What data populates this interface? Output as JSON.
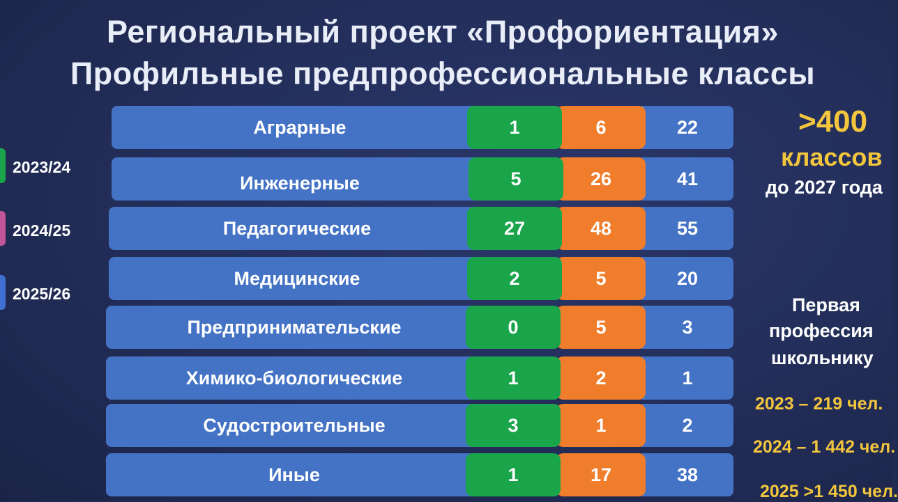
{
  "title_line1": "Региональный проект «Профориентация»",
  "title_line2": "Профильные предпрофессиональные классы",
  "years": [
    {
      "label": "2023/24",
      "color": "#1aa54a"
    },
    {
      "label": "2024/25",
      "color": "#c0569a"
    },
    {
      "label": "2025/26",
      "color": "#3f6fd0"
    }
  ],
  "table": {
    "rows": [
      {
        "name": "Аграрные",
        "v1": "1",
        "v2": "6",
        "v3": "22"
      },
      {
        "name": "Инженерные",
        "v1": "5",
        "v2": "26",
        "v3": "41"
      },
      {
        "name": "Педагогические",
        "v1": "27",
        "v2": "48",
        "v3": "55"
      },
      {
        "name": "Медицинские",
        "v1": "2",
        "v2": "5",
        "v3": "20"
      },
      {
        "name": "Предпринимательские",
        "v1": "0",
        "v2": "5",
        "v3": "3"
      },
      {
        "name": "Химико-биологические",
        "v1": "1",
        "v2": "2",
        "v3": "1"
      },
      {
        "name": "Судостроительные",
        "v1": "3",
        "v2": "1",
        "v3": "2"
      },
      {
        "name": "Иные",
        "v1": "1",
        "v2": "17",
        "v3": "38"
      }
    ]
  },
  "side": {
    "big_number": ">400",
    "classes": "классов",
    "until": "до 2027 года",
    "first_prof_l1": "Первая",
    "first_prof_l2": "профессия",
    "first_prof_l3": "школьнику",
    "stat_2023": "2023 – 219 чел.",
    "stat_2024": "2024 – 1 442 чел.",
    "stat_2025": "2025 >1 450 чел."
  },
  "colors": {
    "background": "#222d58",
    "blue_cell": "#4472c4",
    "green_cell": "#1aa54a",
    "orange_cell": "#ef7d2b",
    "yellow_text": "#f3c63d"
  }
}
